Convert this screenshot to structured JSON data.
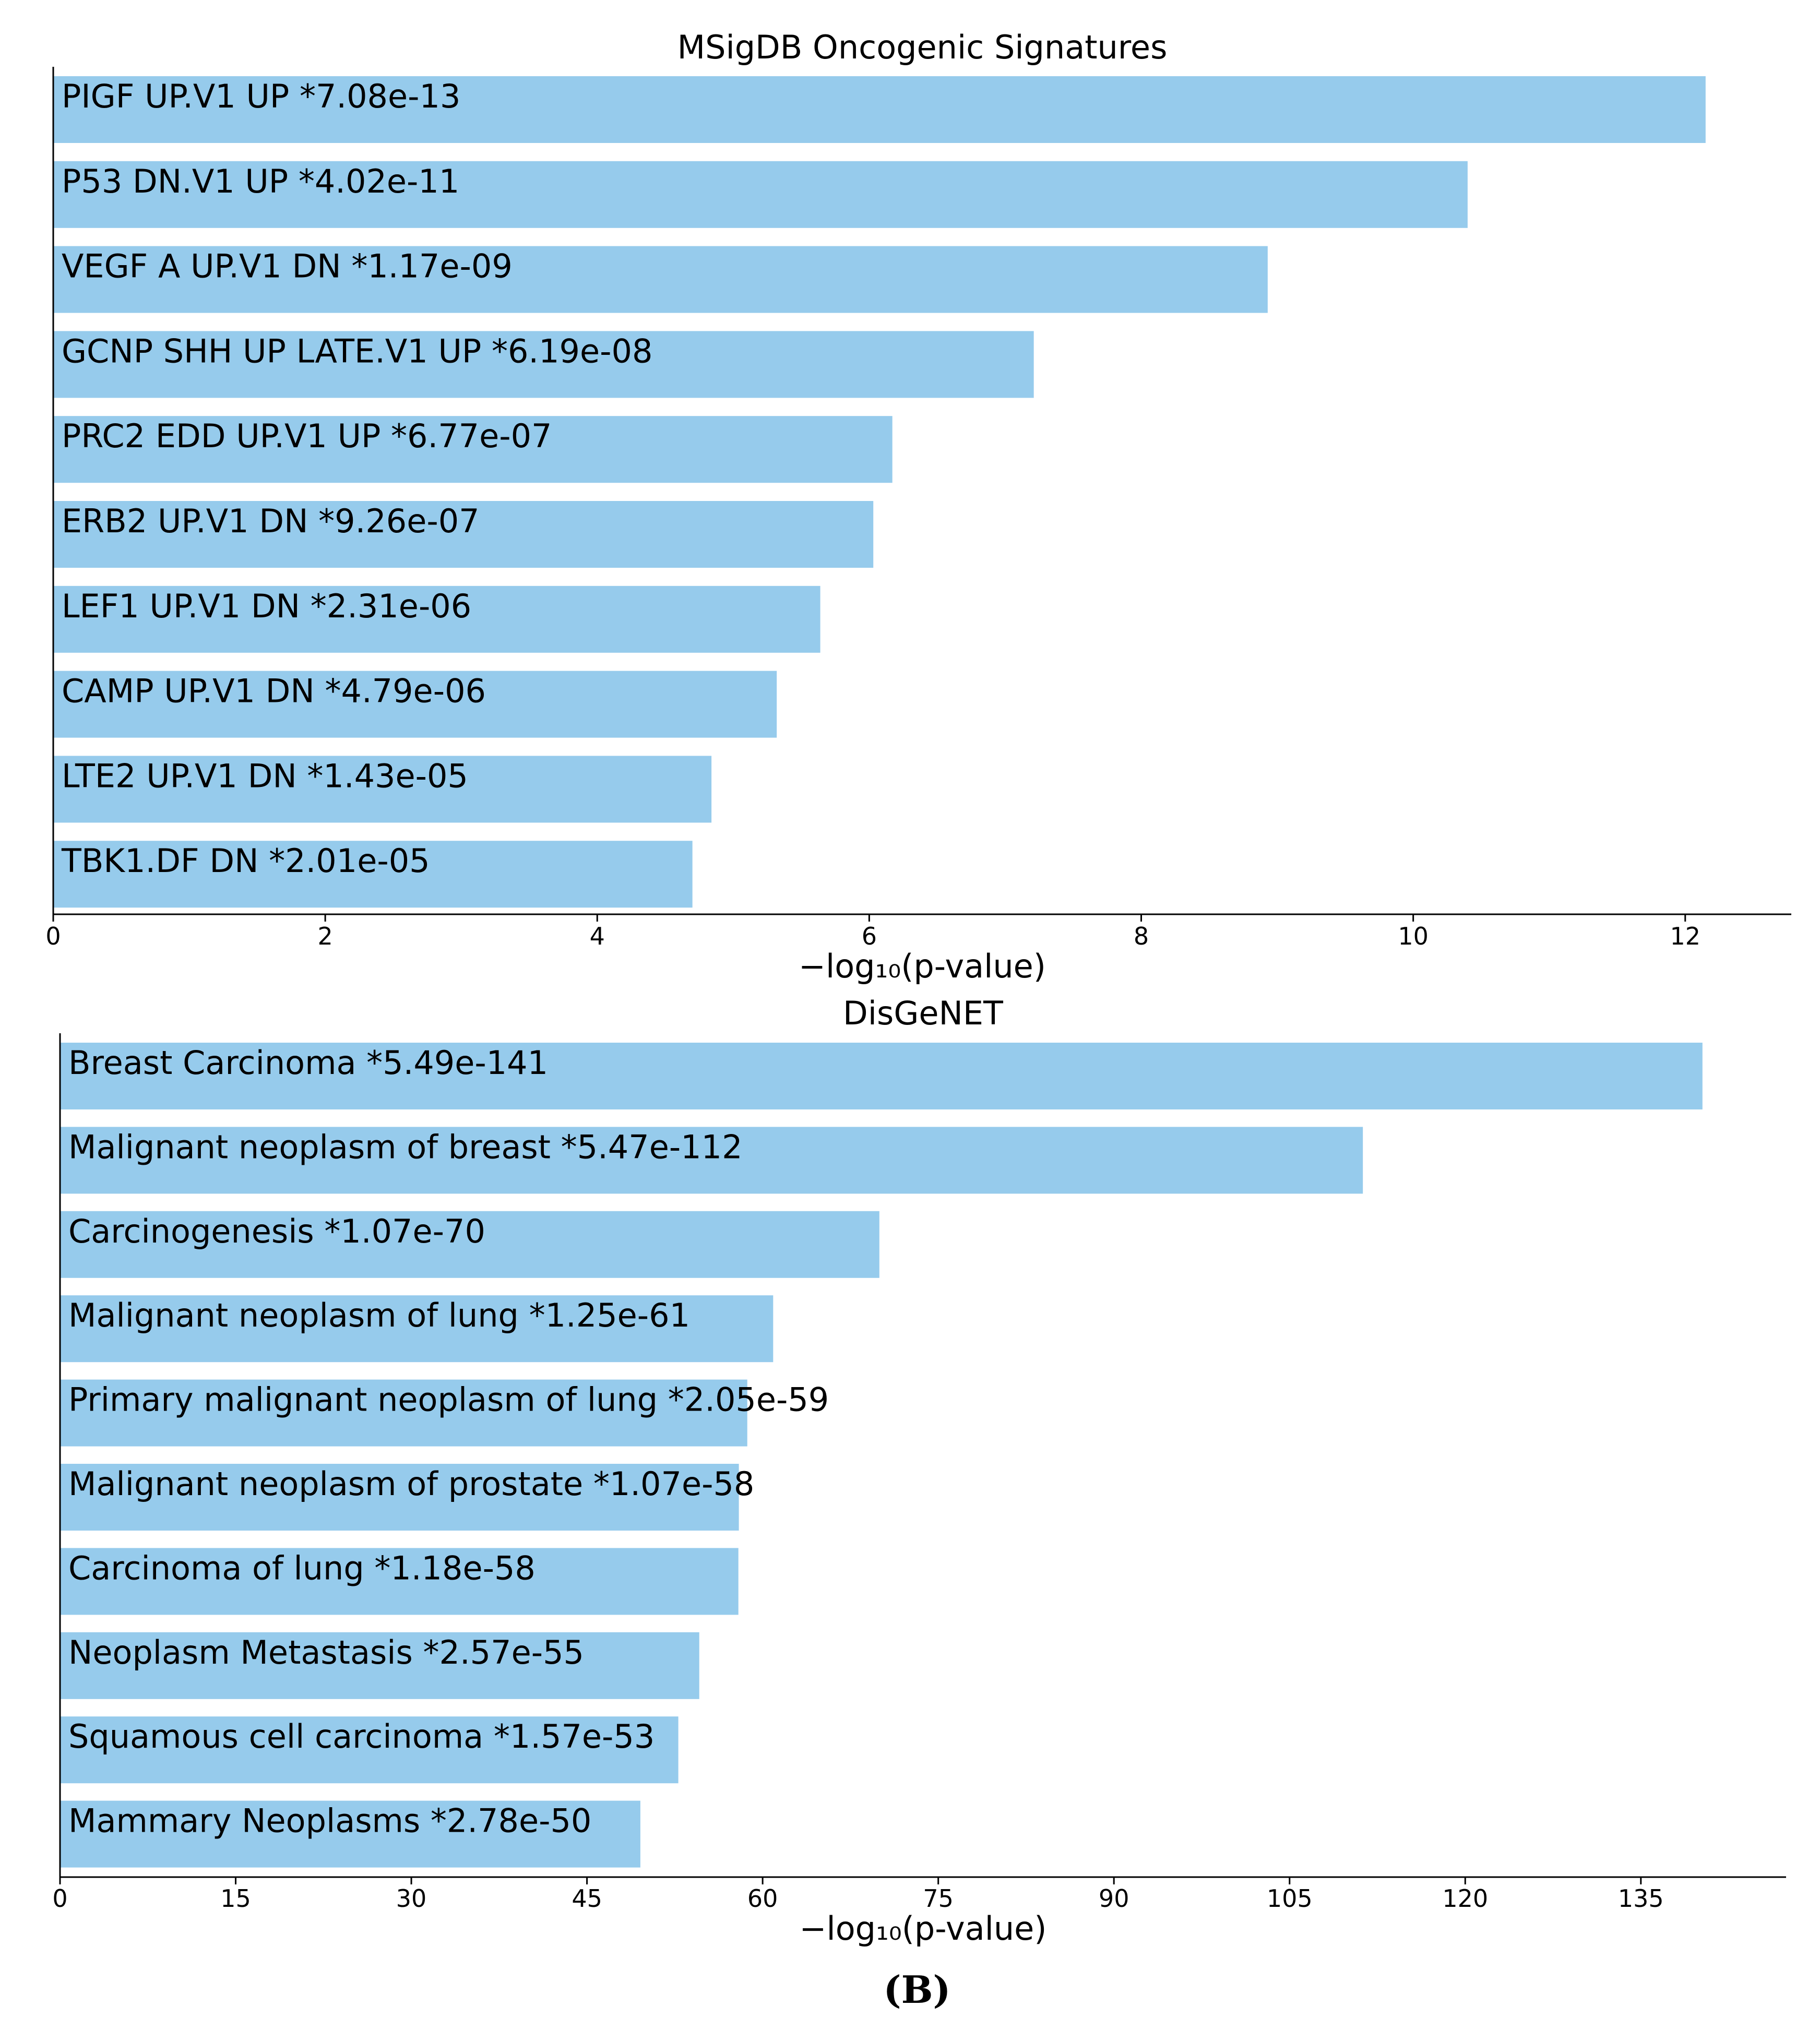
{
  "colors": {
    "bar": "#96CBEC"
  },
  "caption": "(B)",
  "chart_data": [
    {
      "type": "bar",
      "orientation": "horizontal",
      "title": "MSigDB Oncogenic Signatures",
      "xlabel": "−log₁₀(p-value)",
      "xlim": [
        0,
        12.78
      ],
      "xticks": [
        0,
        2,
        4,
        6,
        8,
        10,
        12
      ],
      "xtick_labels": [
        "0",
        "2",
        "4",
        "6",
        "8",
        "10",
        "12"
      ],
      "categories": [
        "PIGF UP.V1 UP  *7.08e-13",
        "P53 DN.V1 UP  *4.02e-11",
        "VEGF A UP.V1 DN  *1.17e-09",
        "GCNP SHH UP LATE.V1 UP  *6.19e-08",
        "PRC2 EDD UP.V1 UP  *6.77e-07",
        "ERB2 UP.V1 DN  *9.26e-07",
        "LEF1 UP.V1 DN  *2.31e-06",
        "CAMP UP.V1 DN  *4.79e-06",
        "LTE2 UP.V1 DN  *1.43e-05",
        "TBK1.DF DN  *2.01e-05"
      ],
      "values": [
        12.15,
        10.4,
        8.93,
        7.21,
        6.17,
        6.03,
        5.64,
        5.32,
        4.84,
        4.7
      ]
    },
    {
      "type": "bar",
      "orientation": "horizontal",
      "title": "DisGeNET",
      "xlabel": "−log₁₀(p-value)",
      "xlim": [
        0,
        147.4
      ],
      "xticks": [
        0,
        15,
        30,
        45,
        60,
        75,
        90,
        105,
        120,
        135
      ],
      "xtick_labels": [
        "0",
        "15",
        "30",
        "45",
        "60",
        "75",
        "90",
        "105",
        "120",
        "135"
      ],
      "categories": [
        "Breast Carcinoma  *5.49e-141",
        "Malignant neoplasm of breast  *5.47e-112",
        "Carcinogenesis  *1.07e-70",
        "Malignant neoplasm of lung  *1.25e-61",
        "Primary malignant neoplasm of lung  *2.05e-59",
        "Malignant neoplasm of prostate  *1.07e-58",
        "Carcinoma of lung  *1.18e-58",
        "Neoplasm Metastasis  *2.57e-55",
        "Squamous cell carcinoma  *1.57e-53",
        "Mammary Neoplasms  *2.78e-50"
      ],
      "values": [
        140.26,
        111.26,
        69.97,
        60.9,
        58.69,
        57.97,
        57.93,
        54.59,
        52.8,
        49.56
      ]
    }
  ]
}
